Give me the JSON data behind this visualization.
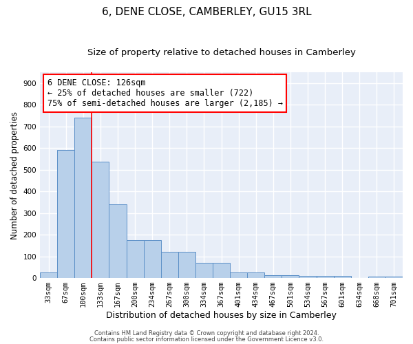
{
  "title": "6, DENE CLOSE, CAMBERLEY, GU15 3RL",
  "subtitle": "Size of property relative to detached houses in Camberley",
  "xlabel": "Distribution of detached houses by size in Camberley",
  "ylabel": "Number of detached properties",
  "bar_values": [
    27,
    592,
    740,
    537,
    340,
    176,
    176,
    120,
    120,
    70,
    70,
    25,
    25,
    13,
    13,
    10,
    10,
    10,
    0,
    8,
    8
  ],
  "bin_labels": [
    "33sqm",
    "67sqm",
    "100sqm",
    "133sqm",
    "167sqm",
    "200sqm",
    "234sqm",
    "267sqm",
    "300sqm",
    "334sqm",
    "367sqm",
    "401sqm",
    "434sqm",
    "467sqm",
    "501sqm",
    "534sqm",
    "567sqm",
    "601sqm",
    "634sqm",
    "668sqm",
    "701sqm"
  ],
  "bar_color": "#b8d0ea",
  "bar_edge_color": "#5b8fc7",
  "background_color": "#e8eef8",
  "grid_color": "#ffffff",
  "annotation_line1": "6 DENE CLOSE: 126sqm",
  "annotation_line2": "← 25% of detached houses are smaller (722)",
  "annotation_line3": "75% of semi-detached houses are larger (2,185) →",
  "red_line_x": 2.5,
  "ylim": [
    0,
    950
  ],
  "yticks": [
    0,
    100,
    200,
    300,
    400,
    500,
    600,
    700,
    800,
    900
  ],
  "footnote1": "Contains HM Land Registry data © Crown copyright and database right 2024.",
  "footnote2": "Contains public sector information licensed under the Government Licence v3.0.",
  "title_fontsize": 11,
  "subtitle_fontsize": 9.5,
  "ylabel_fontsize": 8.5,
  "xlabel_fontsize": 9,
  "tick_fontsize": 7.5,
  "annotation_fontsize": 8.5,
  "footnote_fontsize": 6
}
